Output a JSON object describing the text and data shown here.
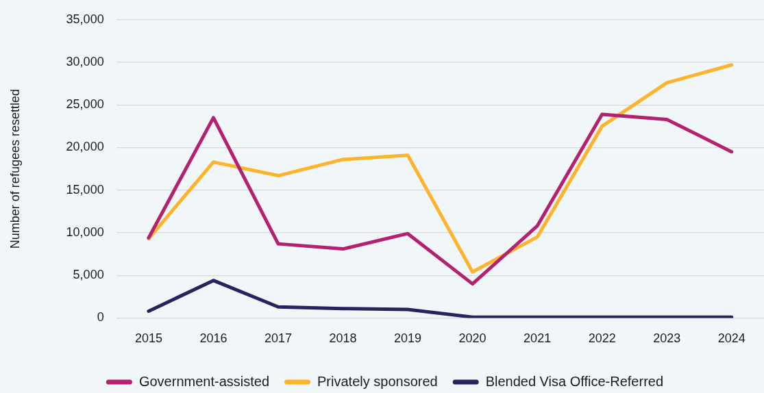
{
  "chart_data": {
    "type": "line",
    "ylabel": "Number of refugees resettled",
    "categories": [
      "2015",
      "2016",
      "2017",
      "2018",
      "2019",
      "2020",
      "2021",
      "2022",
      "2023",
      "2024"
    ],
    "series": [
      {
        "name": "Government-assisted",
        "color": "#b3216f",
        "values": [
          9400,
          23500,
          8700,
          8100,
          9900,
          4000,
          10800,
          23900,
          23300,
          19500
        ]
      },
      {
        "name": "Privately sponsored",
        "color": "#fdb32b",
        "values": [
          9300,
          18300,
          16700,
          18600,
          19100,
          5400,
          9500,
          22500,
          27600,
          29700
        ]
      },
      {
        "name": "Blended Visa Office-Referred",
        "color": "#28235e",
        "values": [
          800,
          4400,
          1300,
          1100,
          1000,
          100,
          100,
          100,
          100,
          100
        ]
      }
    ],
    "ylim": [
      0,
      35000
    ],
    "yticks": [
      0,
      {
        "value": 5000,
        "label": "5,000"
      },
      {
        "value": 10000,
        "label": "10,000"
      },
      {
        "value": 15000,
        "label": "15,000"
      },
      {
        "value": 20000,
        "label": "20,000"
      },
      {
        "value": 25000,
        "label": "25,000"
      },
      {
        "value": 30000,
        "label": "30,000"
      },
      {
        "value": 35000,
        "label": "35,000"
      }
    ],
    "grid": "y",
    "legend": "bottom",
    "marker": "none",
    "line_style": "solid"
  }
}
